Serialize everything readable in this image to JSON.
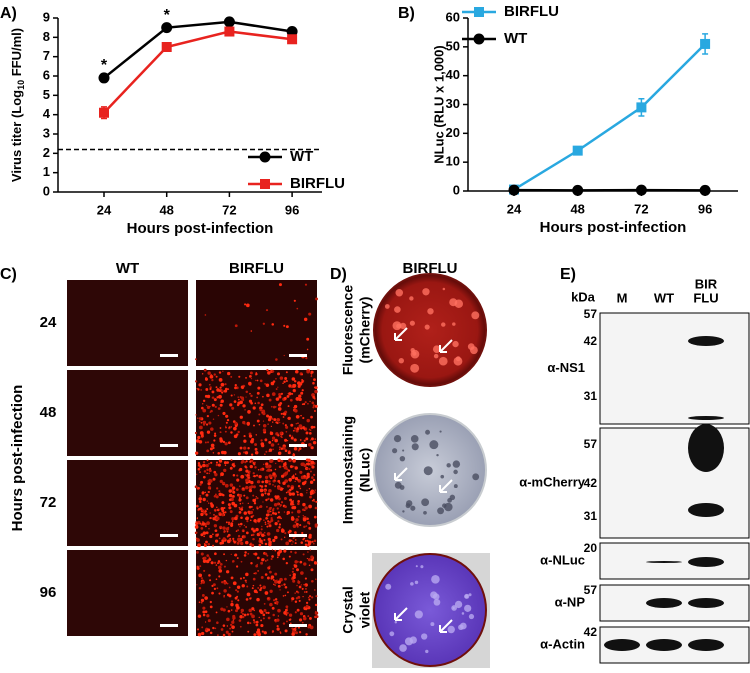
{
  "chart_data": [
    {
      "type": "line",
      "panel_label": "A)",
      "xlabel": "Hours post-infection",
      "ylabel": [
        "Virus titer (Log",
        "10",
        " FFU/ml)"
      ],
      "categories": [
        "24",
        "48",
        "72",
        "96"
      ],
      "series": [
        {
          "name": "WT",
          "color": "#000000",
          "marker": "circle",
          "values": [
            5.9,
            8.5,
            8.8,
            8.3
          ],
          "errors": [
            0.1,
            0.1,
            0.1,
            0.1
          ]
        },
        {
          "name": "BIRFLU",
          "color": "#e8231f",
          "marker": "square",
          "values": [
            4.1,
            7.5,
            8.3,
            7.9
          ],
          "errors": [
            0.3,
            0.1,
            0.1,
            0.1
          ]
        }
      ],
      "ylim": [
        0,
        9
      ],
      "yticks": [
        0,
        1,
        2,
        3,
        4,
        5,
        6,
        7,
        8,
        9
      ],
      "reference_line": 2.2,
      "legend": "lower right",
      "annotations": [
        {
          "text": "*",
          "x": "24"
        },
        {
          "text": "*",
          "x": "48"
        }
      ]
    },
    {
      "type": "line",
      "panel_label": "B)",
      "xlabel": "Hours post-infection",
      "ylabel": "NLuc (RLU x 1,000)",
      "categories": [
        "24",
        "48",
        "72",
        "96"
      ],
      "series": [
        {
          "name": "BIRFLU",
          "color": "#29a8e0",
          "marker": "square",
          "values": [
            0.5,
            14,
            29,
            51
          ],
          "errors": [
            0.5,
            1,
            3,
            3.5
          ]
        },
        {
          "name": "WT",
          "color": "#000000",
          "marker": "circle",
          "values": [
            0.3,
            0.2,
            0.3,
            0.2
          ],
          "errors": [
            0.2,
            0.2,
            0.2,
            0.2
          ]
        }
      ],
      "ylim": [
        0,
        60
      ],
      "yticks": [
        0,
        10,
        20,
        30,
        40,
        50,
        60
      ],
      "legend": "upper left"
    }
  ],
  "panel_c": {
    "label": "C)",
    "columns": [
      "WT",
      "BIRFLU"
    ],
    "rows": [
      "24",
      "48",
      "72",
      "96"
    ],
    "ylabel": "Hours post-infection"
  },
  "panel_d": {
    "label": "D)",
    "title": "BIRFLU",
    "rows": [
      [
        "Fluorescence",
        "(mCherry)"
      ],
      [
        "Immunostaining",
        "(NLuc)"
      ],
      [
        "Crystal",
        "violet"
      ]
    ]
  },
  "panel_e": {
    "label": "E)",
    "unit": "kDa",
    "lanes": [
      "M",
      "WT",
      [
        "BIR",
        "FLU"
      ]
    ],
    "blots": [
      {
        "label": "α-NS1",
        "kda": [
          "57",
          "42",
          "31"
        ]
      },
      {
        "label": "α-mCherry",
        "kda": [
          "57",
          "42",
          "31"
        ]
      },
      {
        "label": "α-NLuc",
        "kda": [
          "20"
        ]
      },
      {
        "label": "α-NP",
        "kda": [
          "57"
        ]
      },
      {
        "label": "α-Actin",
        "kda": [
          "42"
        ]
      }
    ]
  }
}
